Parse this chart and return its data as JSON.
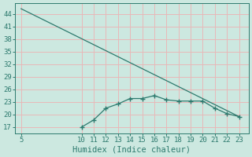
{
  "line1_x": [
    5,
    23
  ],
  "line1_y": [
    45.2,
    19.5
  ],
  "line2_x": [
    10,
    11,
    12,
    13,
    14,
    15,
    16,
    17,
    18,
    19,
    20,
    21,
    22,
    23
  ],
  "line2_y": [
    17.0,
    18.7,
    21.5,
    22.5,
    23.8,
    23.8,
    24.5,
    23.5,
    23.2,
    23.2,
    23.2,
    21.5,
    20.2,
    19.5
  ],
  "color": "#2d7a6e",
  "bg_color": "#cce8e0",
  "grid_color": "#e8b8b8",
  "xlabel": "Humidex (Indice chaleur)",
  "xlim": [
    4.5,
    23.8
  ],
  "ylim": [
    15.5,
    46.5
  ],
  "yticks": [
    17,
    20,
    23,
    26,
    29,
    32,
    35,
    38,
    41,
    44
  ],
  "xticks": [
    5,
    10,
    11,
    12,
    13,
    14,
    15,
    16,
    17,
    18,
    19,
    20,
    21,
    22,
    23
  ],
  "tick_fontsize": 6.5,
  "xlabel_fontsize": 7.5
}
